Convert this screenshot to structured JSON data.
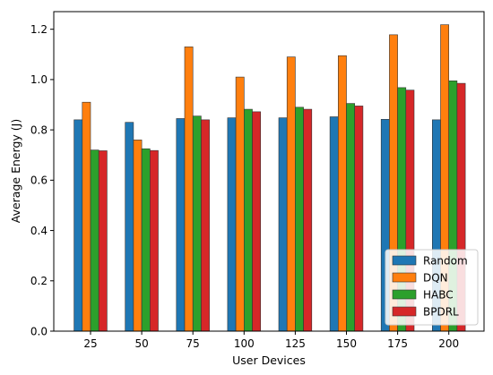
{
  "chart_data": {
    "type": "bar",
    "categories": [
      "25",
      "50",
      "75",
      "100",
      "125",
      "150",
      "175",
      "200"
    ],
    "series": [
      {
        "name": "Random",
        "color": "#1f77b4",
        "values": [
          0.84,
          0.83,
          0.845,
          0.848,
          0.848,
          0.852,
          0.842,
          0.84
        ]
      },
      {
        "name": "DQN",
        "color": "#ff7f0e",
        "values": [
          0.91,
          0.76,
          1.13,
          1.01,
          1.09,
          1.095,
          1.178,
          1.218
        ]
      },
      {
        "name": "HABC",
        "color": "#2ca02c",
        "values": [
          0.72,
          0.725,
          0.855,
          0.882,
          0.89,
          0.905,
          0.968,
          0.995
        ]
      },
      {
        "name": "BPDRL",
        "color": "#d62728",
        "values": [
          0.717,
          0.718,
          0.84,
          0.872,
          0.882,
          0.895,
          0.958,
          0.985
        ]
      }
    ],
    "xlabel": "User Devices",
    "ylabel": "Average Energy (J)",
    "ylim": [
      0.0,
      1.27
    ],
    "yticks": [
      "0.0",
      "0.2",
      "0.4",
      "0.6",
      "0.8",
      "1.0",
      "1.2"
    ],
    "legend_position": "bottom-right",
    "grid": false
  }
}
